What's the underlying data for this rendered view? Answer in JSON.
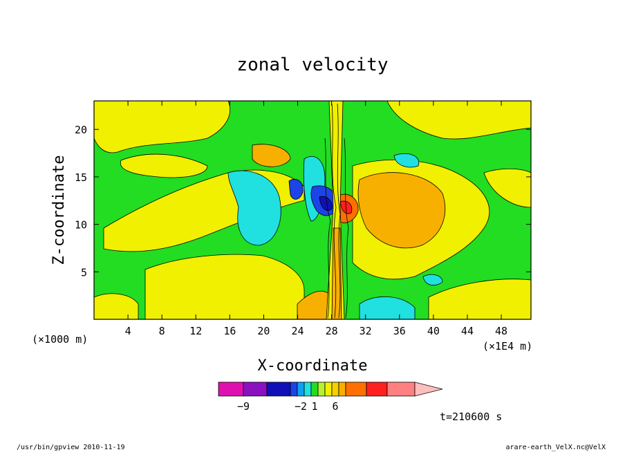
{
  "chart_data": {
    "type": "heatmap",
    "title": "zonal velocity",
    "xlabel": "X-coordinate",
    "ylabel": "Z-coordinate",
    "x_unit_left": "(×1000 m)",
    "x_unit_right": "(×1E4 m)",
    "xlim": [
      0,
      51.5
    ],
    "ylim": [
      0,
      23
    ],
    "x_ticks": [
      4,
      8,
      12,
      16,
      20,
      24,
      28,
      32,
      36,
      40,
      44,
      48
    ],
    "y_ticks": [
      5,
      10,
      15,
      20
    ],
    "colorbar": {
      "colors": [
        "#e010b0",
        "#8a10c0",
        "#1010b8",
        "#1c44e6",
        "#10a0ee",
        "#20e0e0",
        "#22dd22",
        "#b8f030",
        "#f0f000",
        "#f4d000",
        "#f8b000",
        "#ff7000",
        "#ff2020",
        "#ff8080",
        "#ffbebe"
      ],
      "labels": [
        {
          "text": "−9",
          "index": 1
        },
        {
          "text": "−2",
          "index": 4.5
        },
        {
          "text": "1",
          "index": 6.5
        },
        {
          "text": "6",
          "index": 9.5
        }
      ]
    },
    "time_label": "t=210600 s"
  },
  "footer": {
    "left": "/usr/bin/gpview   2010-11-19",
    "right": "arare-earth_VelX.nc@VelX"
  }
}
